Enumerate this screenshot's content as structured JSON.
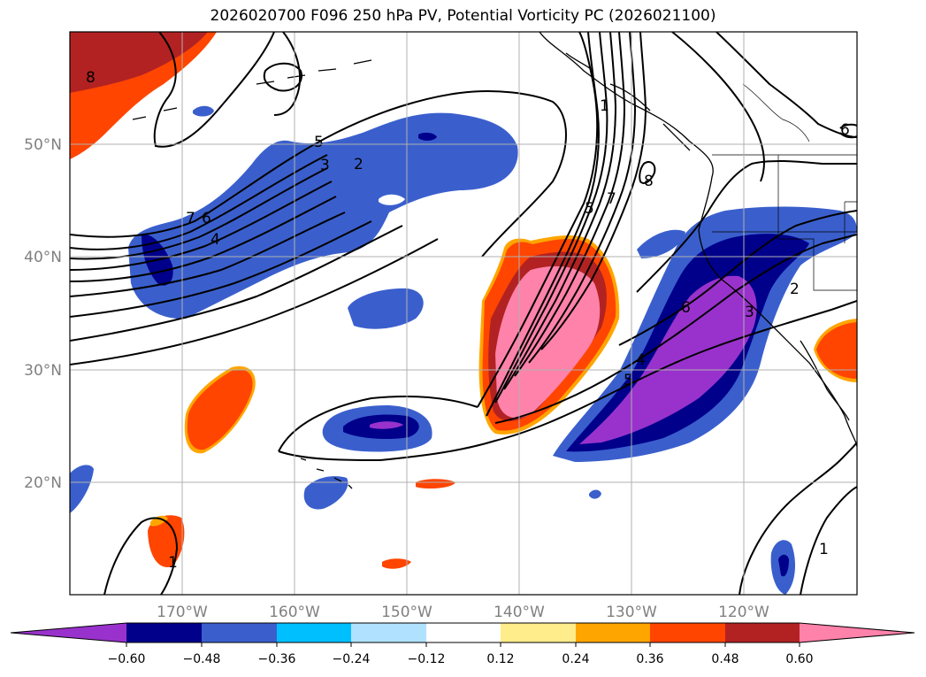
{
  "title": "2026020700 F096 250 hPa PV, Potential Vorticity PC (2026021100)",
  "colors": {
    "neg_060": "#9932cc",
    "neg_048": "#00008b",
    "neg_036": "#3a5fcd",
    "neg_024": "#00bfff",
    "neg_012": "#b0e2ff",
    "zero": "#ffffff",
    "pos_012": "#ffec8b",
    "pos_024": "#ffa500",
    "pos_036": "#ff4500",
    "pos_048": "#b22222",
    "pos_060": "#ff82ab",
    "grid": "#b0b0b0",
    "coast": "#000000"
  },
  "map": {
    "lon_range": [
      -180,
      -110
    ],
    "lat_range": [
      10,
      60
    ],
    "lon_ticks": [
      "170°W",
      "160°W",
      "150°W",
      "140°W",
      "130°W",
      "120°W"
    ],
    "lat_ticks": [
      "50°N",
      "40°N",
      "30°N",
      "20°N"
    ],
    "contour_labels": [
      "8",
      "7",
      "6",
      "5",
      "4",
      "3",
      "2",
      "1",
      "1",
      "5",
      "7",
      "8",
      "6",
      "5",
      "4",
      "3",
      "2",
      "1",
      "6"
    ]
  },
  "colorbar": {
    "ticks": [
      "−0.60",
      "−0.48",
      "−0.36",
      "−0.24",
      "−0.12",
      "0.12",
      "0.24",
      "0.36",
      "0.48",
      "0.60"
    ]
  }
}
